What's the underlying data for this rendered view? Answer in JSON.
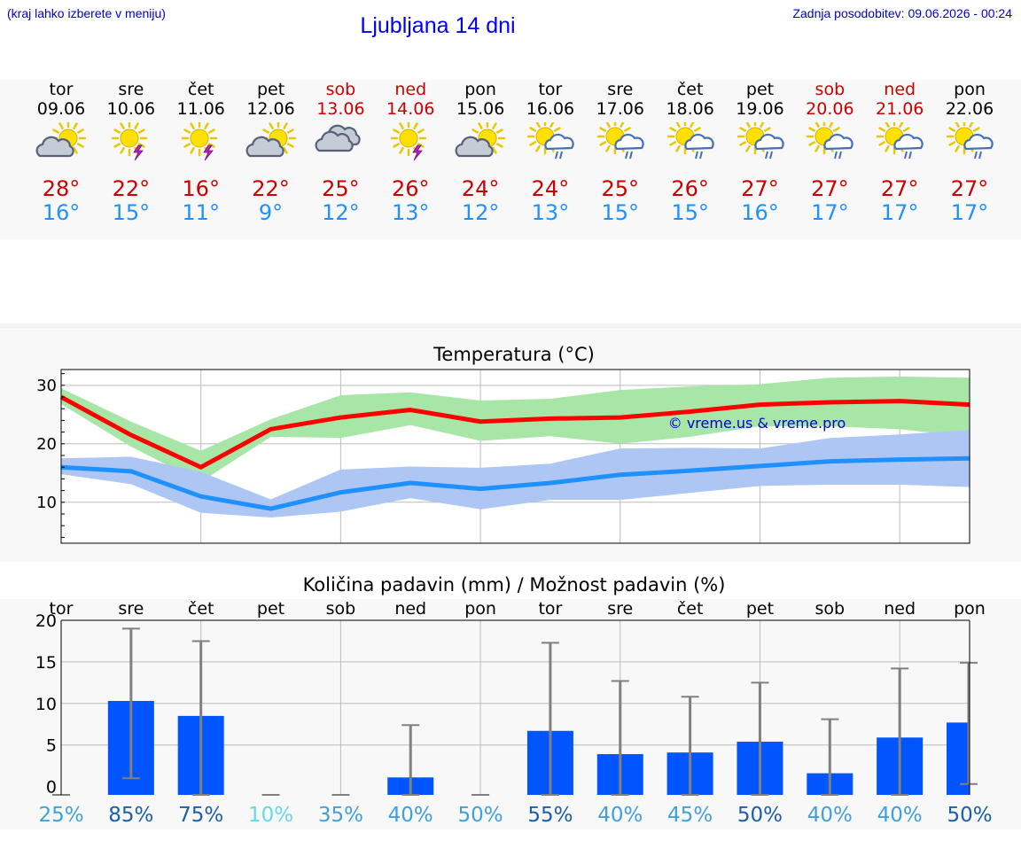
{
  "header": {
    "menu_hint": "(kraj lahko izberete v meniju)",
    "title": "Ljubljana 14 dni",
    "last_update": "Zadnja posodobitev: 09.06.2026 - 00:24"
  },
  "days": [
    {
      "name": "tor",
      "date": "09.06",
      "weekend": false,
      "icon": "partly-cloudy-icon",
      "tmax": "28°",
      "tmin": "16°"
    },
    {
      "name": "sre",
      "date": "10.06",
      "weekend": false,
      "icon": "sun-thunder-icon",
      "tmax": "22°",
      "tmin": "15°"
    },
    {
      "name": "čet",
      "date": "11.06",
      "weekend": false,
      "icon": "sun-thunder-icon",
      "tmax": "16°",
      "tmin": "11°"
    },
    {
      "name": "pet",
      "date": "12.06",
      "weekend": false,
      "icon": "partly-cloudy-icon",
      "tmax": "22°",
      "tmin": "9°"
    },
    {
      "name": "sob",
      "date": "13.06",
      "weekend": true,
      "icon": "cloudy-icon",
      "tmax": "25°",
      "tmin": "12°"
    },
    {
      "name": "ned",
      "date": "14.06",
      "weekend": true,
      "icon": "sun-thunder-icon",
      "tmax": "26°",
      "tmin": "13°"
    },
    {
      "name": "pon",
      "date": "15.06",
      "weekend": false,
      "icon": "partly-cloudy-icon",
      "tmax": "24°",
      "tmin": "12°"
    },
    {
      "name": "tor",
      "date": "16.06",
      "weekend": false,
      "icon": "sun-rain-icon",
      "tmax": "24°",
      "tmin": "13°"
    },
    {
      "name": "sre",
      "date": "17.06",
      "weekend": false,
      "icon": "sun-rain-icon",
      "tmax": "25°",
      "tmin": "15°"
    },
    {
      "name": "čet",
      "date": "18.06",
      "weekend": false,
      "icon": "sun-rain-icon",
      "tmax": "26°",
      "tmin": "15°"
    },
    {
      "name": "pet",
      "date": "19.06",
      "weekend": false,
      "icon": "sun-rain-icon",
      "tmax": "27°",
      "tmin": "16°"
    },
    {
      "name": "sob",
      "date": "20.06",
      "weekend": true,
      "icon": "sun-rain-icon",
      "tmax": "27°",
      "tmin": "17°"
    },
    {
      "name": "ned",
      "date": "21.06",
      "weekend": true,
      "icon": "sun-rain-icon",
      "tmax": "27°",
      "tmin": "17°"
    },
    {
      "name": "pon",
      "date": "22.06",
      "weekend": false,
      "icon": "sun-rain-icon",
      "tmax": "27°",
      "tmin": "17°"
    }
  ],
  "chart_data": [
    {
      "type": "line",
      "title": "Temperatura (°C)",
      "watermark": "© vreme.us & vreme.pro",
      "x": [
        "09.06",
        "10.06",
        "11.06",
        "12.06",
        "13.06",
        "14.06",
        "15.06",
        "16.06",
        "17.06",
        "18.06",
        "19.06",
        "20.06",
        "21.06",
        "22.06"
      ],
      "ylim": [
        3,
        32.7
      ],
      "yticks": [
        "10",
        "20",
        "30"
      ],
      "grid": true,
      "series": [
        {
          "values": [
            28,
            21.5,
            16,
            22.5,
            24.5,
            25.8,
            23.8,
            24.3,
            24.5,
            25.5,
            26.7,
            27.1,
            27.3,
            26.7
          ],
          "band_low": [
            26.8,
            19.5,
            13.5,
            21.2,
            21,
            23.2,
            20.5,
            21.3,
            20,
            21.2,
            23,
            23,
            22.5,
            21.2
          ],
          "band_high": [
            29.5,
            23.8,
            18.8,
            24.2,
            28.3,
            28.8,
            27.4,
            27.7,
            29.2,
            29.8,
            30.2,
            31.3,
            31.5,
            31.3
          ],
          "color": "#ff0000",
          "band_color": "#a8e6a8"
        },
        {
          "values": [
            16,
            15.3,
            11,
            8.9,
            11.7,
            13.3,
            12.3,
            13.3,
            14.7,
            15.4,
            16.2,
            17,
            17.3,
            17.5
          ],
          "band_low": [
            14.8,
            13.1,
            8.2,
            7.4,
            8.4,
            10.7,
            8.8,
            10.4,
            10.4,
            11.6,
            12.8,
            13,
            13,
            12.6
          ],
          "band_high": [
            17.5,
            17.8,
            15.2,
            10.5,
            15.6,
            16.1,
            15.9,
            16.6,
            19.2,
            19.3,
            19.2,
            21,
            21.6,
            22.4
          ],
          "color": "#1e90ff",
          "band_color": "#aec6f4"
        }
      ]
    },
    {
      "type": "bar",
      "title": "Količina padavin (mm) / Možnost padavin (%)",
      "categories": [
        "tor",
        "sre",
        "čet",
        "pet",
        "sob",
        "ned",
        "pon",
        "tor",
        "sre",
        "čet",
        "pet",
        "sob",
        "ned",
        "pon"
      ],
      "values": [
        0,
        10.3,
        8.5,
        0,
        0,
        1.1,
        0,
        6.7,
        3.9,
        4.1,
        5.4,
        1.6,
        5.9,
        7.7
      ],
      "error_low": [
        0,
        1,
        0,
        0,
        0,
        0,
        0,
        0,
        0,
        0,
        0,
        0,
        0,
        0.3
      ],
      "error_high": [
        0,
        19,
        17.5,
        0,
        0,
        7.4,
        0,
        17.3,
        12.7,
        10.8,
        12.5,
        8.1,
        14.2,
        14.9
      ],
      "probabilities": [
        "25%",
        "85%",
        "75%",
        "10%",
        "35%",
        "40%",
        "50%",
        "55%",
        "40%",
        "45%",
        "50%",
        "40%",
        "40%",
        "50%"
      ],
      "probability_colors": [
        "#3fa0dc",
        "#1a5fa8",
        "#1a5fa8",
        "#66d9e8",
        "#3fa0dc",
        "#3fa0dc",
        "#3fa0dc",
        "#1a5fa8",
        "#3fa0dc",
        "#3fa0dc",
        "#1a5fa8",
        "#3fa0dc",
        "#3fa0dc",
        "#1a5fa8"
      ],
      "ylim": [
        -1,
        20
      ],
      "yticks": [
        "0",
        "5",
        "10",
        "15",
        "20"
      ],
      "bar_color": "#0055ff",
      "error_color": "#808080",
      "grid": true
    }
  ]
}
